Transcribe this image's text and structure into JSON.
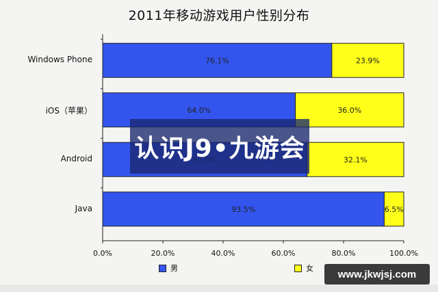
{
  "chart_data": {
    "type": "bar",
    "stacked": true,
    "orientation": "horizontal",
    "title": "2011年移动游戏用户性别分布",
    "categories": [
      "Windows Phone",
      "iOS（苹果）",
      "Android",
      "Java"
    ],
    "series": [
      {
        "name": "男",
        "values": [
          76.1,
          64.0,
          67.9,
          93.5
        ],
        "labels": [
          "76.1%",
          "64.0%",
          "67.9%",
          "93.5%"
        ],
        "color": "#3355ee"
      },
      {
        "name": "女",
        "values": [
          23.9,
          36.0,
          32.1,
          6.5
        ],
        "labels": [
          "23.9%",
          "36.0%",
          "32.1%",
          "6.5%"
        ],
        "color": "#ffff1a"
      }
    ],
    "xlim": [
      0,
      100
    ],
    "xticks": [
      "0.0%",
      "20.0%",
      "40.0%",
      "60.0%",
      "80.0%",
      "100.0%"
    ],
    "xlabel": "",
    "ylabel": "",
    "legend_position": "bottom",
    "grid": false
  },
  "overlay_text": "认识J9•九游会",
  "watermark_text": "www.jkwjsj.com"
}
